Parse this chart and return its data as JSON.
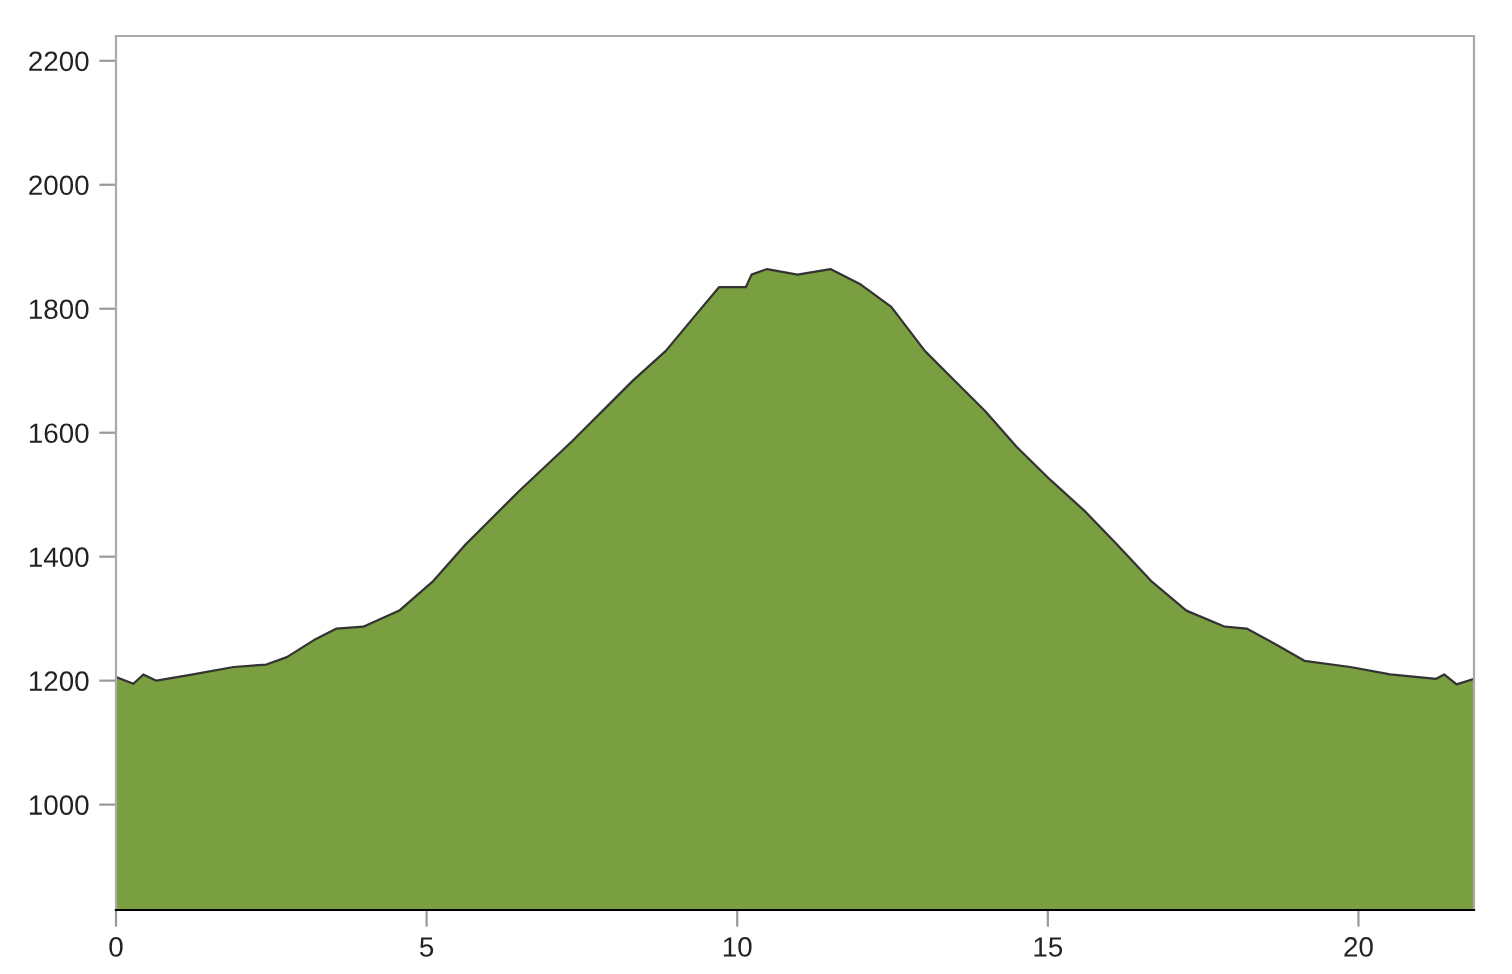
{
  "chart_data": {
    "type": "area",
    "grid": false,
    "x": [
      0,
      0.28,
      0.44,
      0.65,
      1.24,
      1.89,
      2.42,
      2.75,
      3.18,
      3.55,
      3.98,
      4.56,
      5.11,
      5.63,
      6.49,
      7.35,
      8.32,
      8.85,
      9.39,
      9.71,
      10.14,
      10.23,
      10.48,
      10.97,
      11.5,
      11.99,
      12.48,
      13.02,
      13.44,
      13.99,
      14.5,
      15.05,
      15.59,
      16.11,
      16.66,
      17.23,
      17.85,
      18.2,
      18.68,
      19.13,
      19.87,
      20.51,
      21.25,
      21.38,
      21.58,
      21.86
    ],
    "series": [
      {
        "color": "#7a9f40",
        "values": [
          1206,
          1195,
          1210,
          1200,
          1210,
          1222,
          1226,
          1238,
          1265,
          1284,
          1287,
          1313,
          1361,
          1420,
          1506,
          1587,
          1684,
          1732,
          1797,
          1835,
          1835,
          1855,
          1864,
          1855,
          1864,
          1839,
          1803,
          1732,
          1690,
          1635,
          1577,
          1523,
          1474,
          1420,
          1361,
          1313,
          1287,
          1284,
          1258,
          1232,
          1222,
          1210,
          1203,
          1210,
          1194,
          1203
        ]
      }
    ],
    "xlim": [
      0,
      21.86
    ],
    "xticks": [
      0,
      5,
      10,
      15,
      20
    ],
    "ylim": [
      830,
      2240
    ],
    "yticks": [
      1000,
      1200,
      1400,
      1600,
      1800,
      2000,
      2200
    ]
  }
}
